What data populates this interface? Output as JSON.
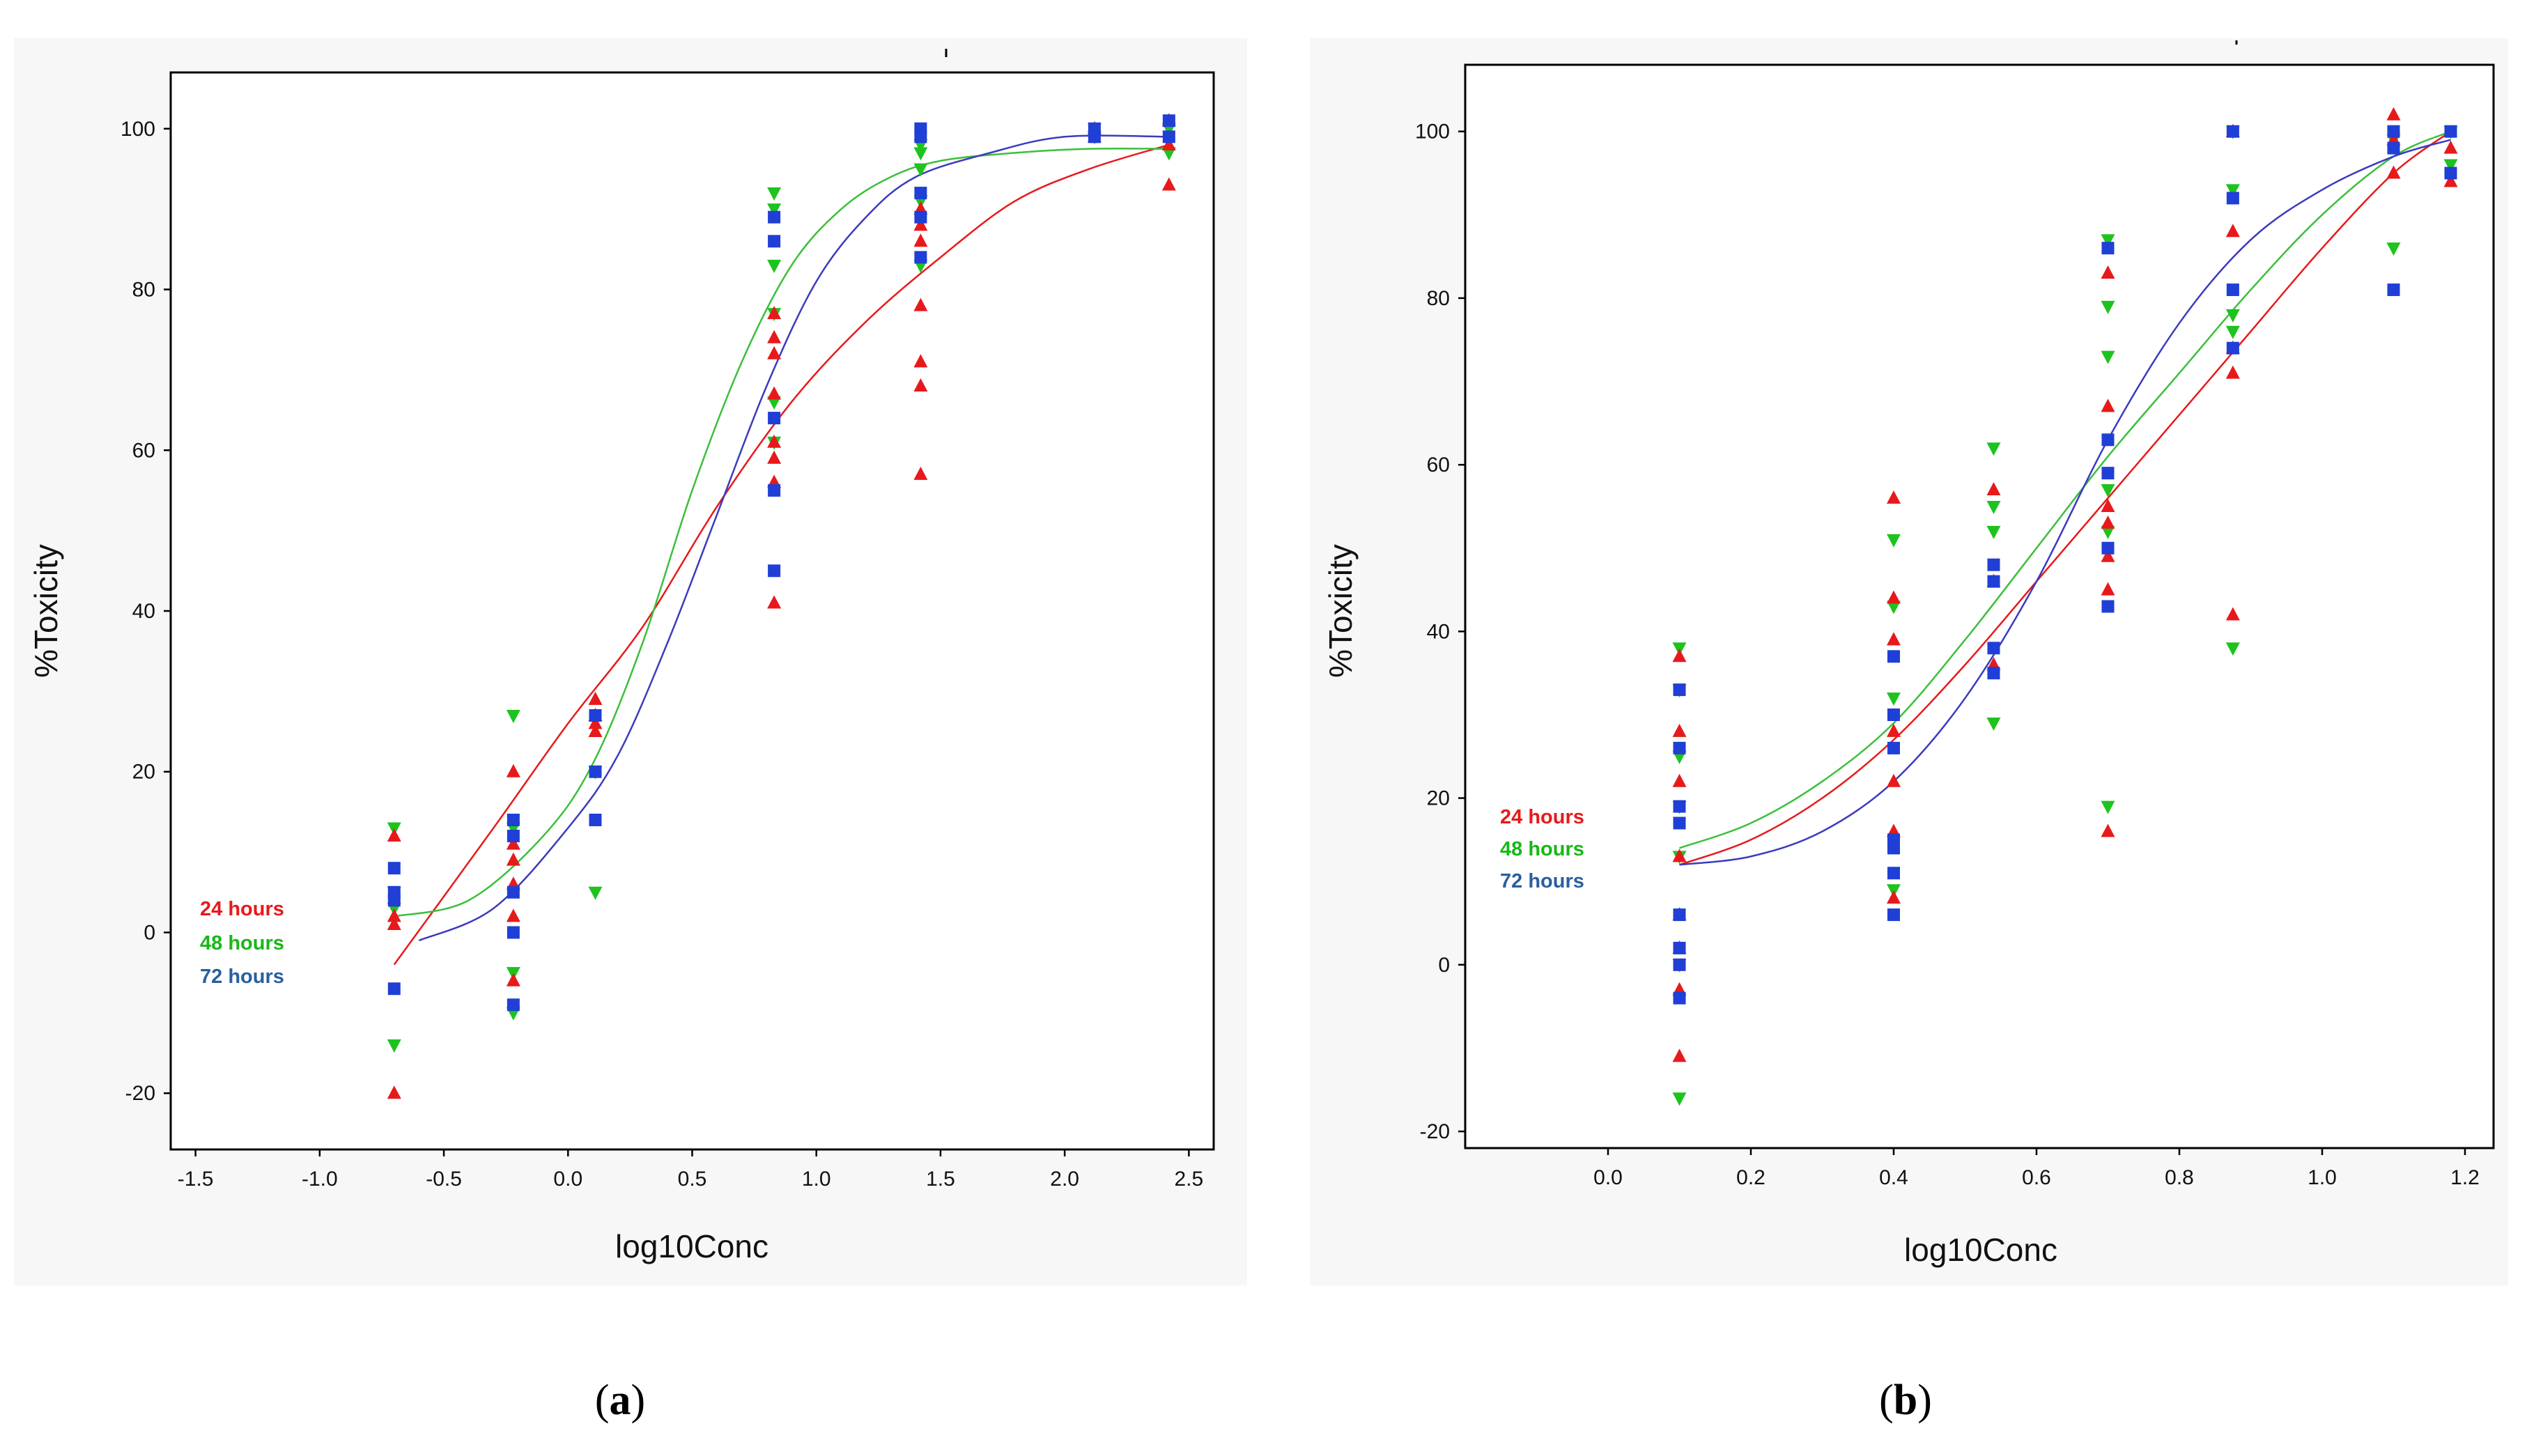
{
  "colors": {
    "h24": "#e8191b",
    "h48": "#1ec31e",
    "h72": "#1f3fd6",
    "fit48": "#3cbf3c",
    "fit72": "#3b3bbf",
    "label72": "#2a5fa0"
  },
  "panels": [
    {
      "caption_open": "(",
      "caption_letter": "a",
      "caption_close": ")",
      "xlabel": "log10Conc",
      "ylabel": "%Toxicity",
      "legend": [
        "24 hours",
        "48 hours",
        "72 hours"
      ],
      "xticks": [
        "-1.5",
        "-1.0",
        "-0.5",
        "0.0",
        "0.5",
        "1.0",
        "1.5",
        "2.0",
        "2.5"
      ],
      "yticks": [
        "-20",
        "0",
        "20",
        "40",
        "60",
        "80",
        "100"
      ]
    },
    {
      "caption_open": "(",
      "caption_letter": "b",
      "caption_close": ")",
      "xlabel": "log10Conc",
      "ylabel": "%Toxicity",
      "legend": [
        "24 hours",
        "48 hours",
        "72 hours"
      ],
      "xticks": [
        "0.0",
        "0.2",
        "0.4",
        "0.6",
        "0.8",
        "1.0",
        "1.2"
      ],
      "yticks": [
        "-20",
        "0",
        "20",
        "40",
        "60",
        "80",
        "100"
      ]
    }
  ],
  "chart_data": [
    {
      "type": "scatter",
      "title": "(a)",
      "xlabel": "log10Conc",
      "ylabel": "%Toxicity",
      "xlim": [
        -1.6,
        2.6
      ],
      "ylim": [
        -27,
        107
      ],
      "xticks": [
        -1.5,
        -1.0,
        -0.5,
        0.0,
        0.5,
        1.0,
        1.5,
        2.0,
        2.5
      ],
      "yticks": [
        -20,
        0,
        20,
        40,
        60,
        80,
        100
      ],
      "legend_position": "left",
      "series": [
        {
          "name": "24 hours",
          "marker": "triangle-up",
          "x": [
            -0.7,
            -0.7,
            -0.7,
            -0.7,
            -0.22,
            -0.22,
            -0.22,
            -0.22,
            -0.22,
            -0.22,
            0.11,
            0.11,
            0.11,
            0.11,
            0.83,
            0.83,
            0.83,
            0.83,
            0.83,
            0.83,
            0.83,
            0.83,
            1.42,
            1.42,
            1.42,
            1.42,
            1.42,
            1.42,
            1.42,
            2.12,
            2.12,
            2.42,
            2.42,
            2.42
          ],
          "y": [
            12,
            2,
            1,
            -20,
            20,
            11,
            9,
            6,
            2,
            -6,
            29,
            27,
            26,
            25,
            77,
            74,
            72,
            67,
            59,
            56,
            41,
            61,
            90,
            88,
            86,
            78,
            71,
            68,
            57,
            100,
            99,
            101,
            98,
            93
          ],
          "fit": {
            "x": [
              -0.7,
              -0.3,
              0.0,
              0.3,
              0.6,
              0.9,
              1.2,
              1.5,
              1.8,
              2.1,
              2.42
            ],
            "y": [
              -4,
              13,
              26,
              38,
              53,
              66,
              76,
              84,
              91,
              95,
              98
            ]
          }
        },
        {
          "name": "48 hours",
          "marker": "triangle-down",
          "x": [
            -0.7,
            -0.7,
            -0.7,
            -0.7,
            -0.22,
            -0.22,
            -0.22,
            -0.22,
            0.11,
            0.11,
            0.83,
            0.83,
            0.83,
            0.83,
            0.83,
            0.83,
            1.42,
            1.42,
            1.42,
            1.42,
            1.42,
            2.12,
            2.12,
            2.42,
            2.42
          ],
          "y": [
            13,
            5,
            3,
            -14,
            27,
            13,
            -5,
            -10,
            5,
            20,
            92,
            90,
            83,
            77,
            66,
            61,
            98,
            97,
            95,
            91,
            83,
            100,
            99,
            100,
            97
          ],
          "fit": {
            "x": [
              -0.7,
              -0.4,
              -0.1,
              0.1,
              0.3,
              0.5,
              0.7,
              0.9,
              1.1,
              1.3,
              1.5,
              1.8,
              2.1,
              2.42
            ],
            "y": [
              2,
              4,
              12,
              21,
              36,
              55,
              71,
              83,
              90,
              94,
              96,
              97,
              97.5,
              97.5
            ]
          }
        },
        {
          "name": "72 hours",
          "marker": "square",
          "x": [
            -0.7,
            -0.7,
            -0.7,
            -0.7,
            -0.22,
            -0.22,
            -0.22,
            -0.22,
            -0.22,
            0.11,
            0.11,
            0.11,
            0.83,
            0.83,
            0.83,
            0.83,
            0.83,
            1.42,
            1.42,
            1.42,
            1.42,
            1.42,
            2.12,
            2.12,
            2.42,
            2.42
          ],
          "y": [
            8,
            5,
            4,
            -7,
            14,
            12,
            5,
            0,
            -9,
            27,
            20,
            14,
            89,
            86,
            64,
            55,
            45,
            100,
            99,
            92,
            84,
            89,
            100,
            99,
            101,
            99
          ],
          "fit": {
            "x": [
              -0.6,
              -0.3,
              0.0,
              0.2,
              0.4,
              0.6,
              0.8,
              1.0,
              1.2,
              1.4,
              1.7,
              2.0,
              2.42
            ],
            "y": [
              -1,
              3,
              13,
              22,
              36,
              52,
              68,
              81,
              89,
              94,
              97,
              99,
              99
            ]
          }
        }
      ]
    },
    {
      "type": "scatter",
      "title": "(b)",
      "xlabel": "log10Conc",
      "ylabel": "%Toxicity",
      "xlim": [
        -0.2,
        1.24
      ],
      "ylim": [
        -22,
        108
      ],
      "xticks": [
        0.0,
        0.2,
        0.4,
        0.6,
        0.8,
        1.0,
        1.2
      ],
      "yticks": [
        -20,
        0,
        20,
        40,
        60,
        80,
        100
      ],
      "legend_position": "left",
      "series": [
        {
          "name": "24 hours",
          "marker": "triangle-up",
          "x": [
            0.1,
            0.1,
            0.1,
            0.1,
            0.1,
            0.1,
            0.1,
            0.1,
            0.4,
            0.4,
            0.4,
            0.4,
            0.4,
            0.4,
            0.4,
            0.54,
            0.54,
            0.54,
            0.7,
            0.7,
            0.7,
            0.7,
            0.7,
            0.7,
            0.7,
            0.875,
            0.875,
            0.875,
            0.875,
            0.875,
            1.1,
            1.1,
            1.1,
            1.18,
            1.18
          ],
          "y": [
            37,
            28,
            22,
            13,
            6,
            2,
            -3,
            -11,
            56,
            44,
            39,
            28,
            22,
            16,
            8,
            57,
            46,
            36,
            83,
            67,
            55,
            49,
            45,
            16,
            53,
            100,
            88,
            74,
            71,
            42,
            102,
            99,
            95,
            98,
            94
          ],
          "fit": {
            "x": [
              0.1,
              0.2,
              0.3,
              0.4,
              0.5,
              0.6,
              0.7,
              0.8,
              0.9,
              1.0,
              1.1,
              1.18
            ],
            "y": [
              12,
              15,
              20,
              27,
              36,
              46,
              56,
              66,
              76,
              86,
              95,
              100
            ]
          }
        },
        {
          "name": "48 hours",
          "marker": "triangle-down",
          "x": [
            0.1,
            0.1,
            0.1,
            0.1,
            0.1,
            0.1,
            0.1,
            0.4,
            0.4,
            0.4,
            0.4,
            0.54,
            0.54,
            0.54,
            0.54,
            0.7,
            0.7,
            0.7,
            0.7,
            0.7,
            0.7,
            0.875,
            0.875,
            0.875,
            0.875,
            0.875,
            1.1,
            1.1,
            1.18,
            1.18
          ],
          "y": [
            38,
            33,
            25,
            19,
            13,
            0,
            -16,
            51,
            43,
            32,
            9,
            62,
            55,
            52,
            29,
            87,
            79,
            73,
            57,
            52,
            19,
            100,
            93,
            78,
            76,
            38,
            86,
            99,
            100,
            96
          ],
          "fit": {
            "x": [
              0.1,
              0.2,
              0.3,
              0.4,
              0.5,
              0.6,
              0.7,
              0.8,
              0.9,
              1.0,
              1.1,
              1.18
            ],
            "y": [
              14,
              17,
              22,
              29,
              39,
              50,
              61,
              71,
              81,
              90,
              97,
              100
            ]
          }
        },
        {
          "name": "72 hours",
          "marker": "square",
          "x": [
            0.1,
            0.1,
            0.1,
            0.1,
            0.1,
            0.1,
            0.1,
            0.1,
            0.4,
            0.4,
            0.4,
            0.4,
            0.4,
            0.4,
            0.4,
            0.54,
            0.54,
            0.54,
            0.54,
            0.7,
            0.7,
            0.7,
            0.7,
            0.7,
            0.875,
            0.875,
            0.875,
            0.875,
            1.1,
            1.1,
            1.1,
            1.18,
            1.18
          ],
          "y": [
            33,
            26,
            19,
            17,
            6,
            2,
            -4,
            0,
            37,
            30,
            26,
            15,
            14,
            11,
            6,
            48,
            46,
            38,
            35,
            86,
            63,
            59,
            50,
            43,
            100,
            92,
            81,
            74,
            81,
            98,
            100,
            100,
            95
          ],
          "fit": {
            "x": [
              0.1,
              0.2,
              0.3,
              0.4,
              0.5,
              0.6,
              0.7,
              0.8,
              0.9,
              1.0,
              1.1,
              1.18
            ],
            "y": [
              12,
              13,
              16,
              22,
              32,
              46,
              63,
              77,
              87,
              93,
              97,
              99
            ]
          }
        }
      ]
    }
  ]
}
